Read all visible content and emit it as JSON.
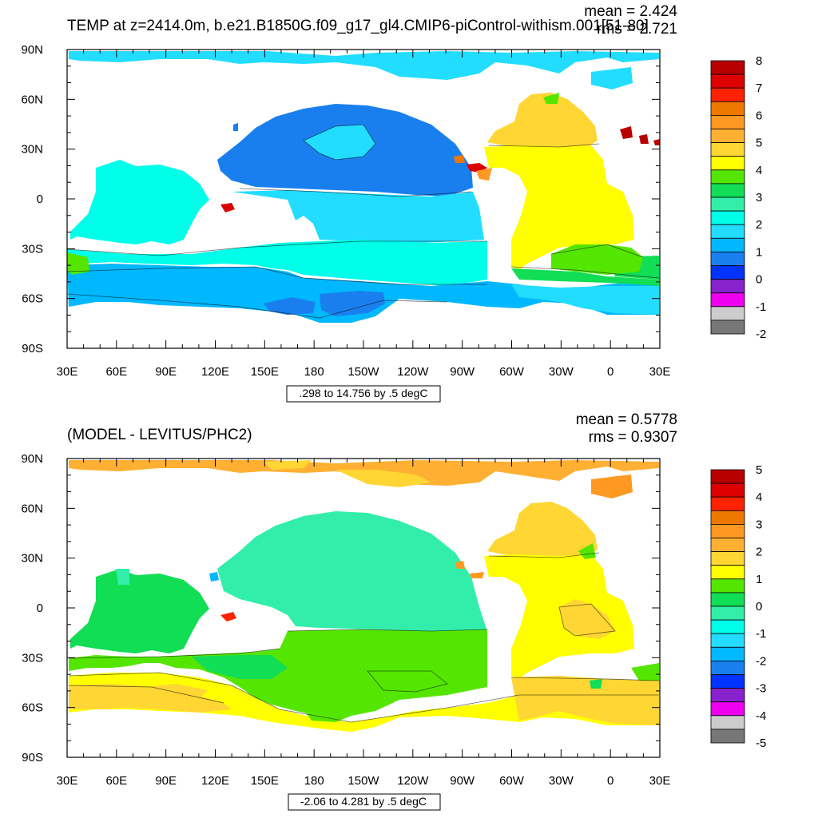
{
  "panels": [
    {
      "title": "TEMP at z=2414.0m, b.e21.B1850G.f09_g17_gl4.CMIP6-piControl-withism.001[51-80]",
      "stats": {
        "mean": "mean = 2.424",
        "rms": "rms = 2.721"
      },
      "range_label": ".298 to 14.756 by .5 degC"
    },
    {
      "title": "(MODEL - LEVITUS/PHC2)",
      "stats": {
        "mean": "mean = 0.5778",
        "rms": "rms = 0.9307"
      },
      "range_label": "-2.06 to 4.281 by .5 degC"
    }
  ],
  "chart_data": [
    {
      "type": "heatmap",
      "title": "TEMP at z=2414.0m, b.e21.B1850G.f09_g17_gl4.CMIP6-piControl-withism.001[51-80]",
      "mean": 2.424,
      "rms": 2.721,
      "units": "degC",
      "contour_info": ".298 to 14.756 by .5 degC",
      "x_ticks": [
        "30E",
        "60E",
        "90E",
        "120E",
        "150E",
        "180",
        "150W",
        "120W",
        "90W",
        "60W",
        "30W",
        "0",
        "30E"
      ],
      "y_ticks": [
        "90N",
        "60N",
        "30N",
        "0",
        "30S",
        "60S",
        "90S"
      ],
      "xlim": [
        30,
        390
      ],
      "ylim": [
        -90,
        90
      ],
      "colorbar": {
        "labels": [
          "8",
          "7",
          "6",
          "5",
          "4",
          "3",
          "2",
          "1",
          "0",
          "-1",
          "-2"
        ],
        "colors": [
          "#b80000",
          "#dd0000",
          "#ff2200",
          "#ee7700",
          "#ff9922",
          "#ffb033",
          "#ffd633",
          "#ffff00",
          "#55e600",
          "#11dd55",
          "#33eeaa",
          "#00ffe8",
          "#22ddff",
          "#00b8ff",
          "#1a7fee",
          "#0033ff",
          "#8822cc",
          "#ee00ee",
          "#cccccc",
          "#777777"
        ]
      },
      "regions": [
        {
          "name": "arctic",
          "value": 1.2,
          "color": "#22ddff"
        },
        {
          "name": "pacific_north",
          "value": 0.9,
          "color": "#1a7fee"
        },
        {
          "name": "pacific_central",
          "value": 1.6,
          "color": "#22ddff"
        },
        {
          "name": "indian",
          "value": 2.0,
          "color": "#00ffe8"
        },
        {
          "name": "southern_ocean",
          "value": 1.3,
          "color": "#00b8ff"
        },
        {
          "name": "atlantic_north",
          "value": 4.8,
          "color": "#ffd633"
        },
        {
          "name": "atlantic_tropical",
          "value": 4.2,
          "color": "#ffff00"
        },
        {
          "name": "atlantic_south",
          "value": 3.5,
          "color": "#55e600"
        },
        {
          "name": "mediterranean",
          "value": 7.5,
          "color": "#dd0000"
        }
      ]
    },
    {
      "type": "heatmap",
      "title": "(MODEL - LEVITUS/PHC2)",
      "mean": 0.5778,
      "rms": 0.9307,
      "units": "degC",
      "contour_info": "-2.06 to 4.281 by .5 degC",
      "x_ticks": [
        "30E",
        "60E",
        "90E",
        "120E",
        "150E",
        "180",
        "150W",
        "120W",
        "90W",
        "60W",
        "30W",
        "0",
        "30E"
      ],
      "y_ticks": [
        "90N",
        "60N",
        "30N",
        "0",
        "30S",
        "60S",
        "90S"
      ],
      "xlim": [
        30,
        390
      ],
      "ylim": [
        -90,
        90
      ],
      "colorbar": {
        "labels": [
          "5",
          "4",
          "3",
          "2",
          "1",
          "0",
          "-1",
          "-2",
          "-3",
          "-4",
          "-5"
        ],
        "colors": [
          "#b80000",
          "#dd0000",
          "#ff2200",
          "#ee7700",
          "#ff9922",
          "#ffb033",
          "#ffd633",
          "#ffff00",
          "#55e600",
          "#11dd55",
          "#33eeaa",
          "#00ffe8",
          "#22ddff",
          "#00b8ff",
          "#1a7fee",
          "#0033ff",
          "#8822cc",
          "#ee00ee",
          "#cccccc",
          "#777777"
        ]
      },
      "regions": [
        {
          "name": "arctic",
          "value": 2.2,
          "color": "#ffb033"
        },
        {
          "name": "pacific_north",
          "value": -0.3,
          "color": "#33eeaa"
        },
        {
          "name": "indian",
          "value": 0.2,
          "color": "#11dd55"
        },
        {
          "name": "pacific_south",
          "value": 0.7,
          "color": "#55e600"
        },
        {
          "name": "southern_ocean",
          "value": 1.2,
          "color": "#ffff00"
        },
        {
          "name": "atlantic_north",
          "value": 1.8,
          "color": "#ffd633"
        },
        {
          "name": "atlantic_south",
          "value": 1.4,
          "color": "#ffff00"
        },
        {
          "name": "mediterranean",
          "value": 4.5,
          "color": "#dd0000"
        }
      ]
    }
  ]
}
